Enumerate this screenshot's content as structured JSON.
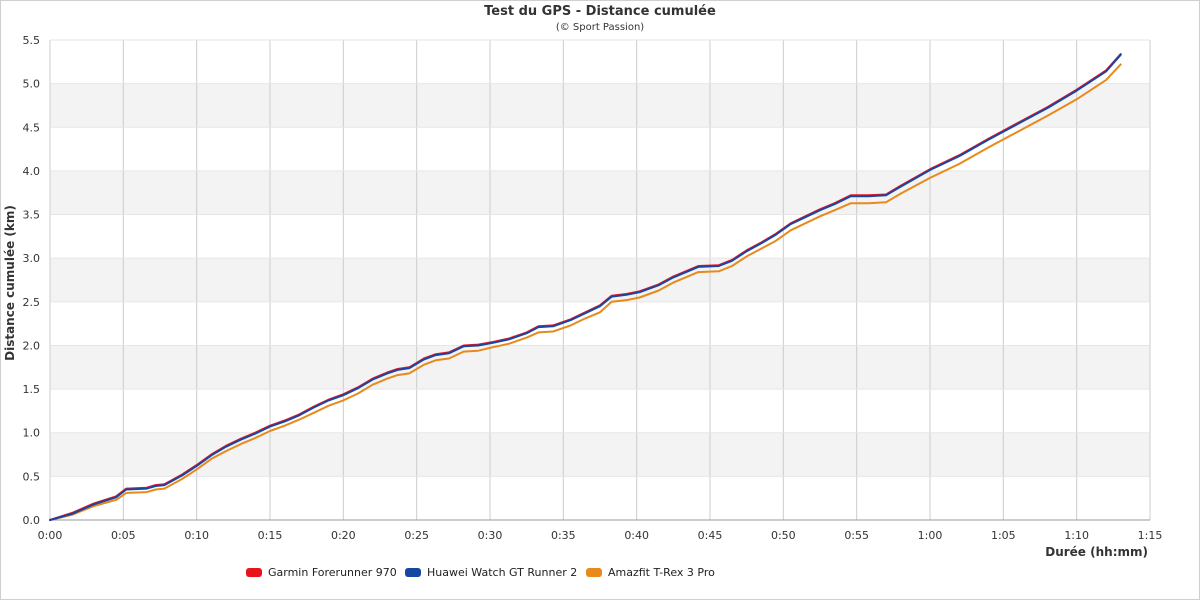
{
  "chart_data": {
    "type": "line",
    "title": "Test du GPS - Distance cumulée",
    "subtitle": "(© Sport Passion)",
    "xlabel": "Durée (hh:mm)",
    "ylabel": "Distance cumulée (km)",
    "xlim": [
      0,
      75
    ],
    "ylim": [
      0,
      5.5
    ],
    "x_ticks": [
      0,
      5,
      10,
      15,
      20,
      25,
      30,
      35,
      40,
      45,
      50,
      55,
      60,
      65,
      70,
      75
    ],
    "x_tick_labels": [
      "0:00",
      "0:05",
      "0:10",
      "0:15",
      "0:20",
      "0:25",
      "0:30",
      "0:35",
      "0:40",
      "0:45",
      "0:50",
      "0:55",
      "1:00",
      "1:05",
      "1:10",
      "1:15"
    ],
    "y_ticks": [
      0,
      0.5,
      1,
      1.5,
      2,
      2.5,
      3,
      3.5,
      4,
      4.5,
      5,
      5.5
    ],
    "y_tick_labels": [
      "0.0",
      "0.5",
      "1.0",
      "1.5",
      "2.0",
      "2.5",
      "3.0",
      "3.5",
      "4.0",
      "4.5",
      "5.0",
      "5.5"
    ],
    "grid": true,
    "legend_position": "bottom-left",
    "series": [
      {
        "name": "Garmin Forerunner 970",
        "color": "#e8141d",
        "x": [
          0,
          1.5,
          3,
          4.5,
          5.2,
          6.6,
          7.2,
          7.8,
          9,
          10,
          11,
          12,
          13,
          14,
          15,
          16,
          17,
          18,
          19,
          20,
          21,
          22,
          23,
          23.7,
          24.5,
          25.5,
          26.3,
          27.2,
          28.2,
          29.2,
          30.2,
          31.3,
          32.5,
          33.3,
          34.3,
          35.5,
          36.5,
          37.5,
          38.3,
          39.3,
          40.2,
          41.5,
          42.5,
          44.2,
          45.6,
          46.5,
          47.5,
          48.5,
          49.5,
          50.5,
          51.5,
          52.5,
          53.5,
          54.6,
          55.8,
          57,
          58,
          60,
          62,
          64,
          66,
          68,
          70,
          72,
          73
        ],
        "y": [
          0,
          0.08,
          0.19,
          0.27,
          0.36,
          0.37,
          0.4,
          0.41,
          0.52,
          0.63,
          0.75,
          0.85,
          0.93,
          1.0,
          1.08,
          1.14,
          1.21,
          1.3,
          1.38,
          1.44,
          1.52,
          1.62,
          1.69,
          1.73,
          1.75,
          1.85,
          1.9,
          1.92,
          2.0,
          2.01,
          2.04,
          2.08,
          2.15,
          2.22,
          2.23,
          2.3,
          2.38,
          2.46,
          2.57,
          2.59,
          2.62,
          2.7,
          2.79,
          2.91,
          2.92,
          2.98,
          3.09,
          3.18,
          3.28,
          3.4,
          3.48,
          3.56,
          3.63,
          3.72,
          3.72,
          3.73,
          3.83,
          4.02,
          4.18,
          4.37,
          4.55,
          4.73,
          4.93,
          5.15,
          5.34
        ]
      },
      {
        "name": "Huawei Watch GT Runner 2",
        "color": "#1746a2",
        "x": [
          0,
          1.5,
          3,
          4.5,
          5.2,
          6.6,
          7.2,
          7.8,
          9,
          10,
          11,
          12,
          13,
          14,
          15,
          16,
          17,
          18,
          19,
          20,
          21,
          22,
          23,
          23.7,
          24.5,
          25.5,
          26.3,
          27.2,
          28.2,
          29.2,
          30.2,
          31.3,
          32.5,
          33.3,
          34.3,
          35.5,
          36.5,
          37.5,
          38.3,
          39.3,
          40.2,
          41.5,
          42.5,
          44.2,
          45.6,
          46.5,
          47.5,
          48.5,
          49.5,
          50.5,
          51.5,
          52.5,
          53.5,
          54.6,
          55.8,
          57,
          58,
          60,
          62,
          64,
          66,
          68,
          70,
          72,
          73
        ],
        "y": [
          0,
          0.07,
          0.18,
          0.26,
          0.35,
          0.36,
          0.39,
          0.4,
          0.51,
          0.62,
          0.74,
          0.84,
          0.92,
          0.99,
          1.07,
          1.13,
          1.2,
          1.29,
          1.37,
          1.43,
          1.51,
          1.61,
          1.68,
          1.72,
          1.74,
          1.84,
          1.89,
          1.91,
          1.99,
          2.0,
          2.03,
          2.07,
          2.14,
          2.21,
          2.22,
          2.29,
          2.37,
          2.45,
          2.56,
          2.58,
          2.61,
          2.69,
          2.78,
          2.9,
          2.91,
          2.97,
          3.08,
          3.17,
          3.27,
          3.39,
          3.47,
          3.55,
          3.62,
          3.71,
          3.71,
          3.72,
          3.82,
          4.01,
          4.17,
          4.36,
          4.54,
          4.72,
          4.92,
          5.14,
          5.33
        ]
      },
      {
        "name": "Amazfit T-Rex 3 Pro",
        "color": "#e8891b",
        "x": [
          0,
          1.5,
          3,
          4.5,
          5.2,
          6.6,
          7.2,
          7.8,
          9,
          10,
          11,
          12,
          13,
          14,
          15,
          16,
          17,
          18,
          19,
          20,
          21,
          22,
          23,
          23.7,
          24.5,
          25.5,
          26.3,
          27.2,
          28.2,
          29.2,
          30.2,
          31.3,
          32.5,
          33.3,
          34.3,
          35.5,
          36.5,
          37.5,
          38.3,
          39.3,
          40.2,
          41.5,
          42.5,
          44.2,
          45.6,
          46.5,
          47.5,
          48.5,
          49.5,
          50.5,
          51.5,
          52.5,
          53.5,
          54.6,
          55.8,
          57,
          58,
          60,
          62,
          64,
          66,
          68,
          70,
          72,
          73
        ],
        "y": [
          0,
          0.06,
          0.16,
          0.23,
          0.31,
          0.32,
          0.35,
          0.36,
          0.47,
          0.58,
          0.7,
          0.79,
          0.87,
          0.94,
          1.02,
          1.08,
          1.15,
          1.23,
          1.31,
          1.37,
          1.45,
          1.55,
          1.62,
          1.66,
          1.68,
          1.78,
          1.83,
          1.85,
          1.93,
          1.94,
          1.98,
          2.02,
          2.09,
          2.15,
          2.16,
          2.23,
          2.31,
          2.38,
          2.5,
          2.52,
          2.55,
          2.63,
          2.72,
          2.84,
          2.85,
          2.91,
          3.02,
          3.11,
          3.2,
          3.32,
          3.4,
          3.48,
          3.55,
          3.63,
          3.63,
          3.64,
          3.74,
          3.92,
          4.08,
          4.27,
          4.45,
          4.63,
          4.82,
          5.04,
          5.22
        ]
      }
    ]
  }
}
